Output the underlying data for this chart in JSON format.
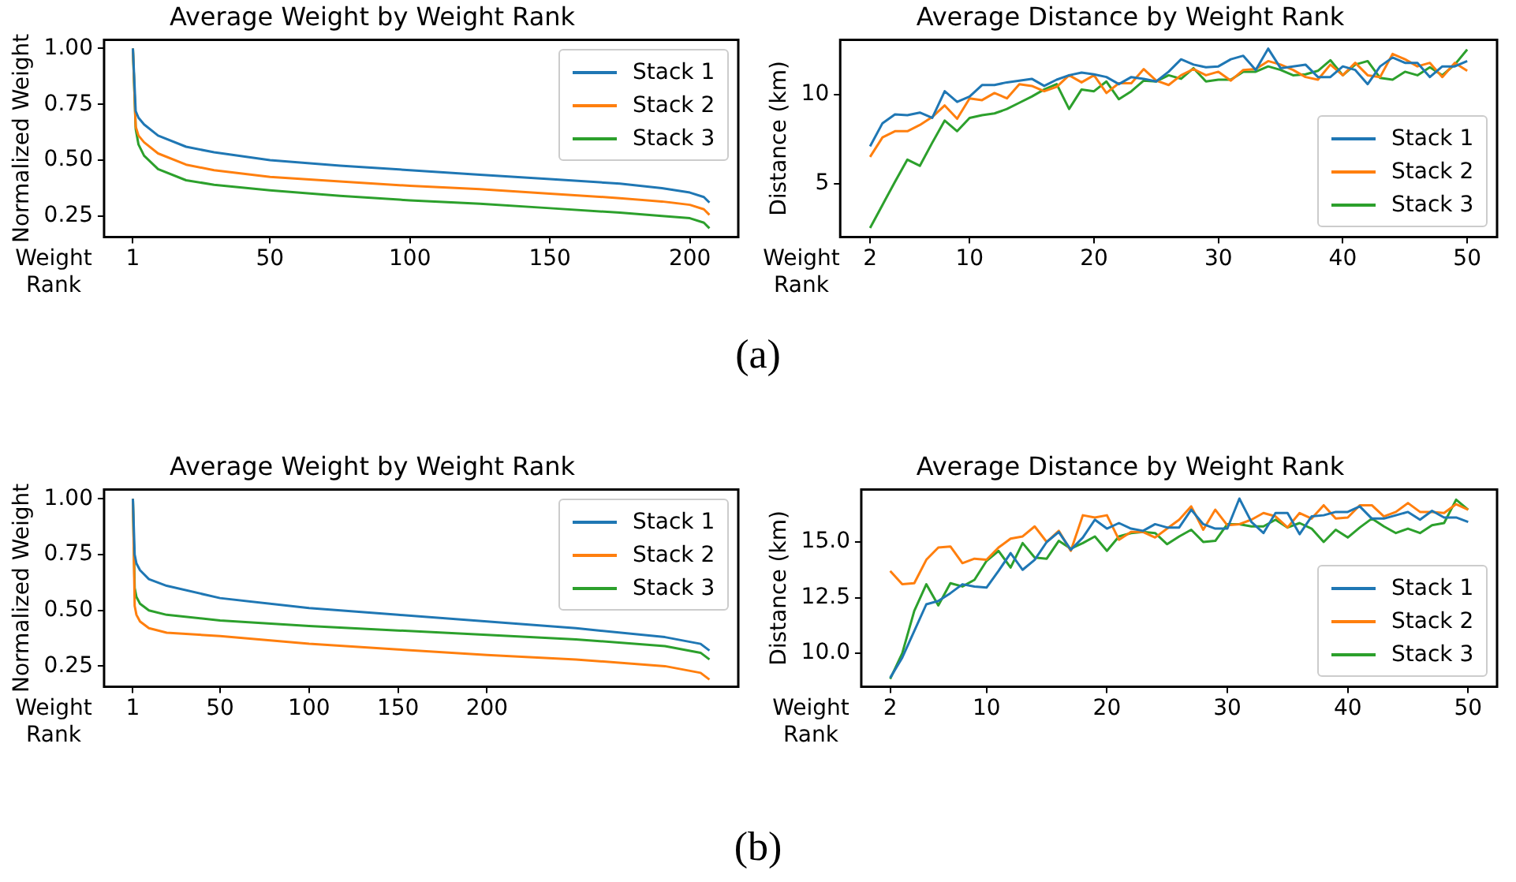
{
  "chart_data": [
    {
      "type": "line",
      "title": "Average Weight by Weight Rank",
      "xlabel": "Weight Rank",
      "ylabel": "Normalized Weight",
      "annotations": [
        "(a)"
      ],
      "x": [
        1,
        2,
        3,
        5,
        10,
        20,
        30,
        50,
        75,
        100,
        125,
        150,
        175,
        190,
        200,
        205,
        207
      ],
      "series": [
        {
          "name": "Stack 1",
          "color": "#1f77b4",
          "values": [
            1.0,
            0.72,
            0.69,
            0.66,
            0.61,
            0.56,
            0.535,
            0.5,
            0.475,
            0.455,
            0.435,
            0.415,
            0.395,
            0.375,
            0.355,
            0.335,
            0.31
          ]
        },
        {
          "name": "Stack 2",
          "color": "#ff7f0e",
          "values": [
            1.0,
            0.65,
            0.61,
            0.58,
            0.53,
            0.48,
            0.455,
            0.425,
            0.405,
            0.385,
            0.37,
            0.35,
            0.33,
            0.315,
            0.3,
            0.28,
            0.255
          ]
        },
        {
          "name": "Stack 3",
          "color": "#2ca02c",
          "values": [
            1.0,
            0.64,
            0.57,
            0.52,
            0.46,
            0.41,
            0.39,
            0.365,
            0.34,
            0.32,
            0.305,
            0.285,
            0.265,
            0.25,
            0.24,
            0.22,
            0.195
          ]
        }
      ],
      "xlim": [
        -9.3,
        217.3
      ],
      "xticks": [
        1,
        50,
        100,
        150,
        200
      ],
      "ylim": [
        0.156,
        1.039
      ],
      "yticks": [
        {
          "value": 0.25,
          "label": "0.25"
        },
        {
          "value": 0.5,
          "label": "0.50"
        },
        {
          "value": 0.75,
          "label": "0.75"
        },
        {
          "value": 1.0,
          "label": "1.00"
        }
      ],
      "legend": "top right",
      "grid": false
    },
    {
      "type": "line",
      "title": "Average Distance by Weight Rank",
      "xlabel": "Weight Rank",
      "ylabel": "Distance (km)",
      "x": [
        2,
        3,
        4,
        5,
        6,
        7,
        8,
        9,
        10,
        11,
        12,
        13,
        14,
        15,
        16,
        17,
        18,
        19,
        20,
        21,
        22,
        23,
        24,
        25,
        26,
        27,
        28,
        29,
        30,
        31,
        32,
        33,
        34,
        35,
        36,
        37,
        38,
        39,
        40,
        41,
        42,
        43,
        44,
        45,
        46,
        47,
        48,
        49,
        50
      ],
      "series": [
        {
          "name": "Stack 1",
          "color": "#1f77b4",
          "values": [
            7.1,
            8.4,
            8.9,
            8.85,
            9.0,
            8.7,
            10.2,
            9.6,
            9.9,
            10.55,
            10.55,
            10.7,
            10.8,
            10.9,
            10.5,
            10.85,
            11.1,
            11.25,
            11.15,
            11.0,
            10.6,
            11.0,
            10.9,
            10.75,
            11.3,
            12.0,
            11.7,
            11.55,
            11.6,
            12.0,
            12.2,
            11.4,
            12.6,
            11.5,
            11.6,
            11.7,
            11.0,
            11.0,
            11.6,
            11.4,
            10.6,
            11.6,
            12.1,
            11.8,
            11.8,
            11.0,
            11.6,
            11.6,
            11.9
          ]
        },
        {
          "name": "Stack 2",
          "color": "#ff7f0e",
          "values": [
            6.5,
            7.6,
            7.95,
            7.95,
            8.3,
            8.75,
            9.4,
            8.65,
            9.8,
            9.7,
            10.1,
            9.8,
            10.6,
            10.5,
            10.2,
            10.45,
            11.1,
            10.7,
            11.1,
            10.1,
            10.65,
            10.65,
            11.45,
            10.8,
            10.55,
            11.1,
            11.45,
            11.1,
            11.3,
            10.8,
            11.4,
            11.45,
            11.9,
            11.7,
            11.4,
            11.0,
            10.85,
            11.7,
            11.1,
            11.8,
            11.1,
            11.0,
            12.3,
            12.0,
            11.6,
            11.8,
            11.0,
            11.8,
            11.35
          ]
        },
        {
          "name": "Stack 3",
          "color": "#2ca02c",
          "values": [
            2.5,
            3.8,
            5.1,
            6.35,
            6.0,
            7.3,
            8.55,
            7.95,
            8.7,
            8.85,
            8.95,
            9.2,
            9.55,
            9.9,
            10.3,
            10.6,
            9.2,
            10.3,
            10.2,
            10.75,
            9.75,
            10.2,
            10.8,
            10.75,
            11.1,
            10.9,
            11.5,
            10.75,
            10.85,
            10.85,
            11.3,
            11.3,
            11.6,
            11.4,
            11.1,
            11.15,
            11.35,
            11.95,
            11.1,
            11.7,
            11.9,
            10.95,
            10.85,
            11.3,
            11.1,
            11.55,
            11.1,
            11.7,
            12.55
          ]
        }
      ],
      "xlim": [
        -0.4,
        52.4
      ],
      "xticks": [
        2,
        10,
        20,
        30,
        40,
        50
      ],
      "ylim": [
        1.99,
        13.1
      ],
      "yticks": [
        5,
        10
      ],
      "legend": "bottom right",
      "grid": false
    },
    {
      "type": "line",
      "title": "Average Weight by Weight Rank",
      "xlabel": "Weight Rank",
      "ylabel": "Normalized Weight",
      "annotations": [
        "(b)"
      ],
      "x": [
        1,
        2,
        3,
        5,
        10,
        20,
        50,
        100,
        150,
        200,
        250,
        300,
        320,
        325
      ],
      "series": [
        {
          "name": "Stack 1",
          "color": "#1f77b4",
          "values": [
            1.0,
            0.75,
            0.71,
            0.68,
            0.64,
            0.61,
            0.555,
            0.51,
            0.48,
            0.45,
            0.42,
            0.38,
            0.35,
            0.32
          ]
        },
        {
          "name": "Stack 2",
          "color": "#ff7f0e",
          "values": [
            1.0,
            0.52,
            0.48,
            0.45,
            0.42,
            0.4,
            0.385,
            0.35,
            0.325,
            0.3,
            0.28,
            0.25,
            0.22,
            0.19
          ]
        },
        {
          "name": "Stack 3",
          "color": "#2ca02c",
          "values": [
            1.0,
            0.6,
            0.56,
            0.53,
            0.5,
            0.48,
            0.455,
            0.43,
            0.41,
            0.39,
            0.37,
            0.34,
            0.31,
            0.28
          ]
        }
      ],
      "xlim": [
        -15.2,
        341.2
      ],
      "xticks": [
        1,
        50,
        100,
        150,
        200
      ],
      "ylim": [
        0.158,
        1.042
      ],
      "yticks": [
        {
          "value": 0.25,
          "label": "0.25"
        },
        {
          "value": 0.5,
          "label": "0.50"
        },
        {
          "value": 0.75,
          "label": "0.75"
        },
        {
          "value": 1.0,
          "label": "1.00"
        }
      ],
      "legend": "top right",
      "grid": false
    },
    {
      "type": "line",
      "title": "Average Distance by Weight Rank",
      "xlabel": "Weight Rank",
      "ylabel": "Distance (km)",
      "x": [
        2,
        3,
        4,
        5,
        6,
        7,
        8,
        9,
        10,
        11,
        12,
        13,
        14,
        15,
        16,
        17,
        18,
        19,
        20,
        21,
        22,
        23,
        24,
        25,
        26,
        27,
        28,
        29,
        30,
        31,
        32,
        33,
        34,
        35,
        36,
        37,
        38,
        39,
        40,
        41,
        42,
        43,
        44,
        45,
        46,
        47,
        48,
        49,
        50
      ],
      "series": [
        {
          "name": "Stack 1",
          "color": "#1f77b4",
          "values": [
            8.9,
            9.8,
            11.0,
            12.2,
            12.35,
            12.7,
            13.1,
            13.0,
            12.95,
            13.7,
            14.5,
            13.75,
            14.2,
            15.0,
            15.45,
            14.65,
            15.2,
            16.0,
            15.6,
            15.85,
            15.6,
            15.5,
            15.8,
            15.65,
            15.65,
            16.45,
            15.8,
            15.6,
            15.6,
            16.95,
            15.9,
            15.4,
            16.3,
            16.3,
            15.35,
            16.15,
            16.2,
            16.35,
            16.35,
            16.6,
            16.05,
            16.05,
            16.2,
            16.35,
            16.0,
            16.4,
            16.1,
            16.1,
            15.9
          ]
        },
        {
          "name": "Stack 2",
          "color": "#ff7f0e",
          "values": [
            13.7,
            13.1,
            13.15,
            14.2,
            14.75,
            14.8,
            14.05,
            14.25,
            14.2,
            14.75,
            15.15,
            15.25,
            15.7,
            15.0,
            15.5,
            14.6,
            16.2,
            16.1,
            16.2,
            15.1,
            15.45,
            15.45,
            15.2,
            15.6,
            16.0,
            16.6,
            15.55,
            16.45,
            15.75,
            15.8,
            16.0,
            16.3,
            16.15,
            15.65,
            16.3,
            16.05,
            16.65,
            16.05,
            16.1,
            16.65,
            16.65,
            16.15,
            16.35,
            16.75,
            16.35,
            16.35,
            16.3,
            16.7,
            16.45
          ]
        },
        {
          "name": "Stack 3",
          "color": "#2ca02c",
          "values": [
            8.85,
            10.0,
            11.9,
            13.1,
            12.15,
            13.15,
            13.0,
            13.3,
            14.15,
            14.6,
            13.85,
            14.95,
            14.3,
            14.25,
            15.05,
            14.7,
            14.95,
            15.25,
            14.6,
            15.25,
            15.4,
            15.45,
            15.4,
            14.9,
            15.25,
            15.55,
            15.0,
            15.05,
            15.8,
            15.8,
            15.7,
            15.7,
            16.0,
            15.65,
            15.85,
            15.6,
            15.0,
            15.55,
            15.2,
            15.65,
            16.05,
            15.7,
            15.4,
            15.6,
            15.4,
            15.75,
            15.85,
            16.9,
            16.45
          ]
        }
      ],
      "xlim": [
        -0.4,
        52.4
      ],
      "xticks": [
        2,
        10,
        20,
        30,
        40,
        50
      ],
      "ylim": [
        8.5,
        17.36
      ],
      "yticks": [
        {
          "value": 10,
          "label": "10.0"
        },
        {
          "value": 12.5,
          "label": "12.5"
        },
        {
          "value": 15,
          "label": "15.0"
        }
      ],
      "legend": "bottom right",
      "grid": false
    }
  ]
}
